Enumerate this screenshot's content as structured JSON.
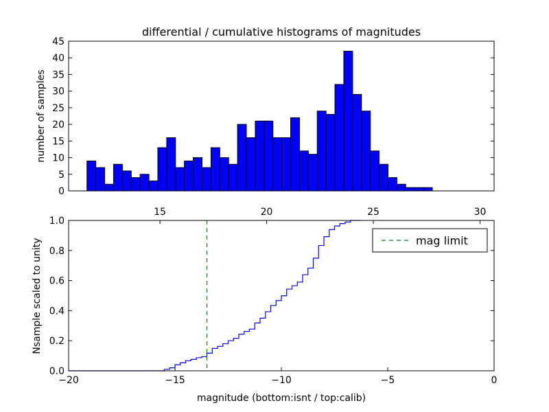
{
  "chart_data": [
    {
      "type": "bar",
      "title": "differential / cumulative histograms of magnitudes",
      "xlabel": "",
      "ylabel": "number of samples",
      "xlim": [
        10.72,
        30.66
      ],
      "ylim": [
        0,
        45
      ],
      "yticks": [
        0,
        5,
        10,
        15,
        20,
        25,
        30,
        35,
        40,
        45
      ],
      "bin_start": 11.58,
      "bin_width": 0.415,
      "values": [
        9,
        7,
        2,
        8,
        6,
        4,
        5,
        3,
        13,
        16,
        7,
        9,
        10,
        7,
        13,
        10,
        8,
        20,
        16,
        21,
        21,
        16,
        16,
        22,
        12,
        11,
        24,
        23,
        32,
        42,
        29,
        24,
        12,
        8,
        4,
        2,
        1,
        1,
        1
      ],
      "color": "#0000ff",
      "grid": false
    },
    {
      "type": "line",
      "title": "",
      "xlabel": "magnitude (bottom:isnt / top:calib)",
      "ylabel": "Nsample scaled to unity",
      "xlim": [
        -20,
        0
      ],
      "ylim": [
        0,
        1
      ],
      "xticks": [
        -20,
        -15,
        -10,
        -5,
        0
      ],
      "xtick_labels": [
        "−20",
        "−15",
        "−10",
        "−5",
        "0"
      ],
      "yticks": [
        0.0,
        0.2,
        0.4,
        0.6,
        0.8,
        1.0
      ],
      "ytick_labels": [
        "0.0",
        "0.2",
        "0.4",
        "0.6",
        "0.8",
        "1.0"
      ],
      "top_xticks": [
        15,
        20,
        25,
        30
      ],
      "top_xlim": [
        10.72,
        30.66
      ],
      "series": [
        {
          "name": "cumulative",
          "style": "step",
          "color": "#0000ff",
          "step_start": -15.5,
          "step_width": 0.25,
          "values": [
            0.01,
            0.02,
            0.04,
            0.053,
            0.067,
            0.076,
            0.087,
            0.094,
            0.117,
            0.149,
            0.163,
            0.18,
            0.2,
            0.216,
            0.243,
            0.262,
            0.277,
            0.318,
            0.35,
            0.393,
            0.434,
            0.467,
            0.499,
            0.543,
            0.566,
            0.59,
            0.639,
            0.683,
            0.749,
            0.833,
            0.892,
            0.939,
            0.963,
            0.979,
            0.989,
            1.0,
            1.0
          ]
        },
        {
          "name": "mag limit",
          "style": "dashed-vline",
          "color": "#008000",
          "x": -13.5
        }
      ],
      "legend": {
        "placement": "top-right",
        "entries": [
          "mag limit"
        ]
      },
      "grid": false
    }
  ]
}
